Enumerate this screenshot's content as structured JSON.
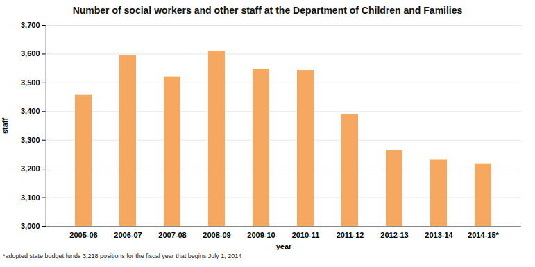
{
  "chart_data": {
    "type": "bar",
    "title": "Number of social workers and other staff at the Department of Children and Families",
    "xlabel": "year",
    "ylabel": "staff",
    "footnote": "*adopted state budget funds 3,218 positions for the fiscal year that begins July 1, 2014",
    "categories": [
      "2005-06",
      "2006-07",
      "2007-08",
      "2008-09",
      "2009-10",
      "2010-11",
      "2011-12",
      "2012-13",
      "2013-14",
      "2014-15*"
    ],
    "values": [
      3457,
      3596,
      3520,
      3610,
      3548,
      3543,
      3390,
      3265,
      3233,
      3218
    ],
    "color": "#f5a85e",
    "ylim": [
      3000,
      3700
    ],
    "yticks": [
      {
        "value": 3000,
        "label": "3,000"
      },
      {
        "value": 3100,
        "label": "3,100"
      },
      {
        "value": 3200,
        "label": "3,200"
      },
      {
        "value": 3300,
        "label": "3,300"
      },
      {
        "value": 3400,
        "label": "3,400"
      },
      {
        "value": 3500,
        "label": "3,500"
      },
      {
        "value": 3600,
        "label": "3,600"
      },
      {
        "value": 3700,
        "label": "3,700"
      }
    ],
    "grid": true
  }
}
